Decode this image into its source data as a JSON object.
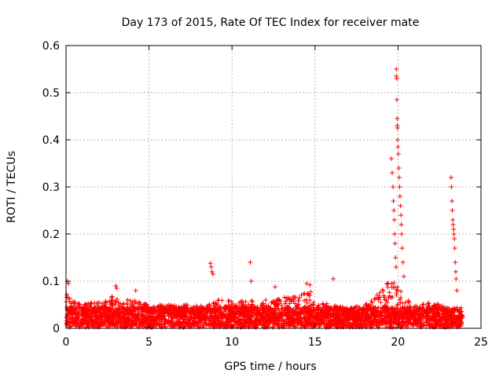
{
  "chart_data": {
    "type": "scatter",
    "title": "Day 173 of 2015, Rate Of TEC Index for receiver mate",
    "xlabel": "GPS time / hours",
    "ylabel": "ROTI / TECUs",
    "xlim": [
      0,
      25
    ],
    "ylim": [
      0,
      0.6
    ],
    "x_ticks": [
      0,
      5,
      10,
      15,
      20,
      25
    ],
    "x_tick_labels": [
      "0",
      "5",
      "10",
      "15",
      "20",
      "25"
    ],
    "y_ticks": [
      0,
      0.1,
      0.2,
      0.3,
      0.4,
      0.5,
      0.6
    ],
    "y_tick_labels": [
      "0",
      "0.1",
      "0.2",
      "0.3",
      "0.4",
      "0.5",
      "0.6"
    ],
    "grid": true,
    "marker": "+",
    "marker_color": "#ff0000",
    "x_range_hours": [
      0,
      23.9
    ],
    "background_band": [
      0.002,
      0.045
    ],
    "envelope": [
      {
        "x": 0.0,
        "y": 0.085
      },
      {
        "x": 0.3,
        "y": 0.06
      },
      {
        "x": 1.0,
        "y": 0.05
      },
      {
        "x": 2.0,
        "y": 0.06
      },
      {
        "x": 3.0,
        "y": 0.07
      },
      {
        "x": 4.0,
        "y": 0.06
      },
      {
        "x": 5.0,
        "y": 0.05
      },
      {
        "x": 6.0,
        "y": 0.05
      },
      {
        "x": 7.0,
        "y": 0.05
      },
      {
        "x": 8.0,
        "y": 0.05
      },
      {
        "x": 9.0,
        "y": 0.06
      },
      {
        "x": 10.0,
        "y": 0.06
      },
      {
        "x": 11.0,
        "y": 0.06
      },
      {
        "x": 12.0,
        "y": 0.06
      },
      {
        "x": 13.0,
        "y": 0.065
      },
      {
        "x": 14.0,
        "y": 0.07
      },
      {
        "x": 14.6,
        "y": 0.09
      },
      {
        "x": 15.0,
        "y": 0.06
      },
      {
        "x": 16.0,
        "y": 0.05
      },
      {
        "x": 17.0,
        "y": 0.045
      },
      {
        "x": 18.0,
        "y": 0.05
      },
      {
        "x": 19.0,
        "y": 0.08
      },
      {
        "x": 19.7,
        "y": 0.11
      },
      {
        "x": 20.3,
        "y": 0.07
      },
      {
        "x": 21.0,
        "y": 0.05
      },
      {
        "x": 22.0,
        "y": 0.055
      },
      {
        "x": 23.0,
        "y": 0.045
      },
      {
        "x": 23.5,
        "y": 0.04
      },
      {
        "x": 23.9,
        "y": 0.035
      }
    ],
    "outliers": [
      {
        "x": 0.08,
        "y": 0.1
      },
      {
        "x": 0.15,
        "y": 0.095
      },
      {
        "x": 3.0,
        "y": 0.09
      },
      {
        "x": 3.05,
        "y": 0.085
      },
      {
        "x": 4.2,
        "y": 0.08
      },
      {
        "x": 8.7,
        "y": 0.138
      },
      {
        "x": 8.75,
        "y": 0.13
      },
      {
        "x": 8.8,
        "y": 0.12
      },
      {
        "x": 8.85,
        "y": 0.115
      },
      {
        "x": 11.1,
        "y": 0.14
      },
      {
        "x": 11.15,
        "y": 0.1
      },
      {
        "x": 12.6,
        "y": 0.088
      },
      {
        "x": 14.5,
        "y": 0.095
      },
      {
        "x": 14.7,
        "y": 0.092
      },
      {
        "x": 16.1,
        "y": 0.105
      }
    ],
    "spikes": [
      {
        "x": 19.6,
        "y": 0.36
      },
      {
        "x": 19.65,
        "y": 0.33
      },
      {
        "x": 19.7,
        "y": 0.3
      },
      {
        "x": 19.72,
        "y": 0.27
      },
      {
        "x": 19.75,
        "y": 0.25
      },
      {
        "x": 19.78,
        "y": 0.23
      },
      {
        "x": 19.8,
        "y": 0.2
      },
      {
        "x": 19.82,
        "y": 0.18
      },
      {
        "x": 19.85,
        "y": 0.15
      },
      {
        "x": 19.88,
        "y": 0.13
      },
      {
        "x": 19.9,
        "y": 0.55
      },
      {
        "x": 19.9,
        "y": 0.535
      },
      {
        "x": 19.92,
        "y": 0.53
      },
      {
        "x": 19.93,
        "y": 0.485
      },
      {
        "x": 19.95,
        "y": 0.445
      },
      {
        "x": 19.96,
        "y": 0.43
      },
      {
        "x": 19.97,
        "y": 0.425
      },
      {
        "x": 19.98,
        "y": 0.4
      },
      {
        "x": 20.0,
        "y": 0.385
      },
      {
        "x": 20.02,
        "y": 0.37
      },
      {
        "x": 20.05,
        "y": 0.34
      },
      {
        "x": 20.08,
        "y": 0.32
      },
      {
        "x": 20.1,
        "y": 0.3
      },
      {
        "x": 20.12,
        "y": 0.28
      },
      {
        "x": 20.15,
        "y": 0.26
      },
      {
        "x": 20.18,
        "y": 0.24
      },
      {
        "x": 20.2,
        "y": 0.22
      },
      {
        "x": 20.22,
        "y": 0.2
      },
      {
        "x": 20.25,
        "y": 0.17
      },
      {
        "x": 20.3,
        "y": 0.14
      },
      {
        "x": 20.35,
        "y": 0.11
      },
      {
        "x": 23.2,
        "y": 0.32
      },
      {
        "x": 23.22,
        "y": 0.3
      },
      {
        "x": 23.25,
        "y": 0.27
      },
      {
        "x": 23.27,
        "y": 0.25
      },
      {
        "x": 23.3,
        "y": 0.23
      },
      {
        "x": 23.32,
        "y": 0.22
      },
      {
        "x": 23.35,
        "y": 0.21
      },
      {
        "x": 23.37,
        "y": 0.2
      },
      {
        "x": 23.4,
        "y": 0.19
      },
      {
        "x": 23.42,
        "y": 0.17
      },
      {
        "x": 23.45,
        "y": 0.14
      },
      {
        "x": 23.48,
        "y": 0.12
      },
      {
        "x": 23.5,
        "y": 0.105
      },
      {
        "x": 23.55,
        "y": 0.08
      }
    ]
  }
}
